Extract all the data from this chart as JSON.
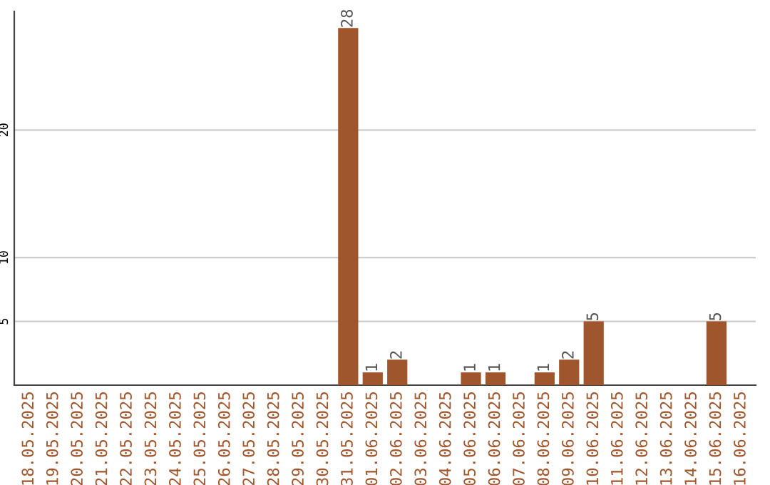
{
  "chart_data": {
    "type": "bar",
    "categories": [
      "18.05.2025",
      "19.05.2025",
      "20.05.2025",
      "21.05.2025",
      "22.05.2025",
      "23.05.2025",
      "24.05.2025",
      "25.05.2025",
      "26.05.2025",
      "27.05.2025",
      "28.05.2025",
      "29.05.2025",
      "30.05.2025",
      "31.05.2025",
      "01.06.2025",
      "02.06.2025",
      "03.06.2025",
      "04.06.2025",
      "05.06.2025",
      "06.06.2025",
      "07.06.2025",
      "08.06.2025",
      "09.06.2025",
      "10.06.2025",
      "11.06.2025",
      "12.06.2025",
      "13.06.2025",
      "14.06.2025",
      "15.06.2025",
      "16.06.2025"
    ],
    "values": [
      0,
      0,
      0,
      0,
      0,
      0,
      0,
      0,
      0,
      0,
      0,
      0,
      0,
      28,
      1,
      2,
      0,
      0,
      1,
      1,
      0,
      1,
      2,
      5,
      0,
      0,
      0,
      0,
      5,
      0
    ],
    "value_labels": [
      null,
      null,
      null,
      null,
      null,
      null,
      null,
      null,
      null,
      null,
      null,
      null,
      null,
      "28",
      "1",
      "2",
      null,
      null,
      "1",
      "1",
      null,
      "1",
      "2",
      "5",
      null,
      null,
      null,
      null,
      "5",
      null
    ],
    "color": "#a0562c",
    "ylim": [
      0,
      29.3
    ],
    "yticks": [
      5,
      10,
      20
    ],
    "grid": "y"
  }
}
